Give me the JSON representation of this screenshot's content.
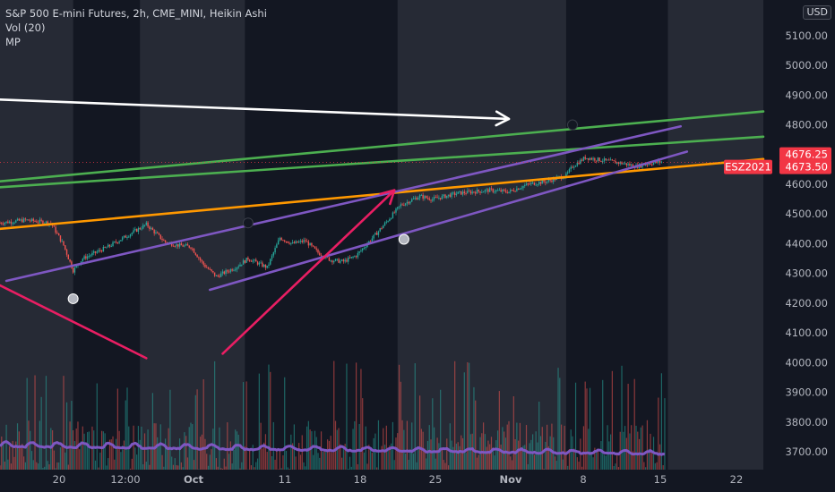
{
  "header": {
    "symbol_title": "S&P 500 E-mini Futures, 2h, CME_MINI, Heikin Ashi",
    "indicator_1": "Vol (20)",
    "indicator_2": "MP",
    "currency": "USD"
  },
  "chart_data": {
    "type": "candlestick",
    "chart_style": "Heikin Ashi",
    "timeframe": "2h",
    "y_axis": {
      "ylim": [
        3640,
        5220
      ],
      "ticks": [
        5100,
        5000,
        4900,
        4800,
        4700,
        4600,
        4500,
        4400,
        4300,
        4200,
        4100,
        4000,
        3900,
        3800,
        3700
      ],
      "tick_labels": [
        "5100.00",
        "5000.00",
        "4900.00",
        "4800.00",
        "4700.00",
        "4600.00",
        "4500.00",
        "4400.00",
        "4300.00",
        "4200.00",
        "4100.00",
        "4000.00",
        "3900.00",
        "3800.00",
        "3700.00"
      ]
    },
    "x_axis": {
      "tick_labels": [
        "20",
        "12:00",
        "Oct",
        "11",
        "18",
        "25",
        "Nov",
        "8",
        "15",
        "22"
      ],
      "bold_labels": [
        "Oct",
        "Nov"
      ]
    },
    "last_price": {
      "value": 4676.25,
      "label": "4676.25"
    },
    "symbol_tag": {
      "symbol": "ESZ2021",
      "value": 4673.5,
      "label": "4673.50"
    },
    "price_path": [
      [
        0,
        4470
      ],
      [
        4,
        4480
      ],
      [
        8,
        4470
      ],
      [
        10,
        4395
      ],
      [
        11.5,
        4310
      ],
      [
        13,
        4350
      ],
      [
        17,
        4390
      ],
      [
        21,
        4440
      ],
      [
        23,
        4465
      ],
      [
        26,
        4405
      ],
      [
        28,
        4395
      ],
      [
        30,
        4390
      ],
      [
        32,
        4330
      ],
      [
        34,
        4290
      ],
      [
        37,
        4320
      ],
      [
        39,
        4350
      ],
      [
        42,
        4320
      ],
      [
        44,
        4420
      ],
      [
        46,
        4400
      ],
      [
        48,
        4410
      ],
      [
        50,
        4370
      ],
      [
        52,
        4345
      ],
      [
        54,
        4340
      ],
      [
        56,
        4360
      ],
      [
        59,
        4430
      ],
      [
        61,
        4480
      ],
      [
        63,
        4530
      ],
      [
        66,
        4560
      ],
      [
        68,
        4550
      ],
      [
        72,
        4570
      ],
      [
        77,
        4580
      ],
      [
        80,
        4575
      ],
      [
        83,
        4600
      ],
      [
        86,
        4610
      ],
      [
        89,
        4630
      ],
      [
        90,
        4660
      ],
      [
        92,
        4690
      ],
      [
        95,
        4680
      ],
      [
        98,
        4670
      ],
      [
        100,
        4660
      ],
      [
        102,
        4670
      ],
      [
        104,
        4676
      ]
    ],
    "volume_price_window": [
      3640,
      4010
    ],
    "series": [
      {
        "name": "Vol (20)",
        "type": "volume_histogram"
      },
      {
        "name": "MP",
        "type": "line",
        "color": "#7e57c2"
      }
    ],
    "drawings": [
      {
        "type": "trendline",
        "color": "#ffffff",
        "from": [
          0,
          4885
        ],
        "to": [
          80,
          4820
        ],
        "arrow": true
      },
      {
        "type": "trendline",
        "color": "#4caf50",
        "from": [
          0,
          4610
        ],
        "to": [
          120,
          4845
        ]
      },
      {
        "type": "trendline",
        "color": "#4caf50",
        "from": [
          0,
          4590
        ],
        "to": [
          120,
          4760
        ]
      },
      {
        "type": "trendline",
        "color": "#ff9800",
        "from": [
          0,
          4450
        ],
        "to": [
          120,
          4685
        ]
      },
      {
        "type": "trendline",
        "color": "#7e57c2",
        "from": [
          1,
          4275
        ],
        "to": [
          107,
          4795
        ]
      },
      {
        "type": "trendline",
        "color": "#7e57c2",
        "from": [
          33,
          4245
        ],
        "to": [
          108,
          4710
        ]
      },
      {
        "type": "trendline",
        "color": "#e91e63",
        "from": [
          0,
          4260
        ],
        "to": [
          23,
          4015
        ]
      },
      {
        "type": "trendline",
        "color": "#e91e63",
        "from": [
          35,
          4030
        ],
        "to": [
          62,
          4580
        ],
        "arrow": true
      }
    ],
    "markers": [
      {
        "at": [
          11.5,
          4215
        ],
        "color": "#b2b5be"
      },
      {
        "at": [
          39,
          4470
        ],
        "color": "#131722"
      },
      {
        "at": [
          63.5,
          4415
        ],
        "color": "#b2b5be"
      },
      {
        "at": [
          90,
          4800
        ],
        "color": "#131722"
      }
    ]
  }
}
